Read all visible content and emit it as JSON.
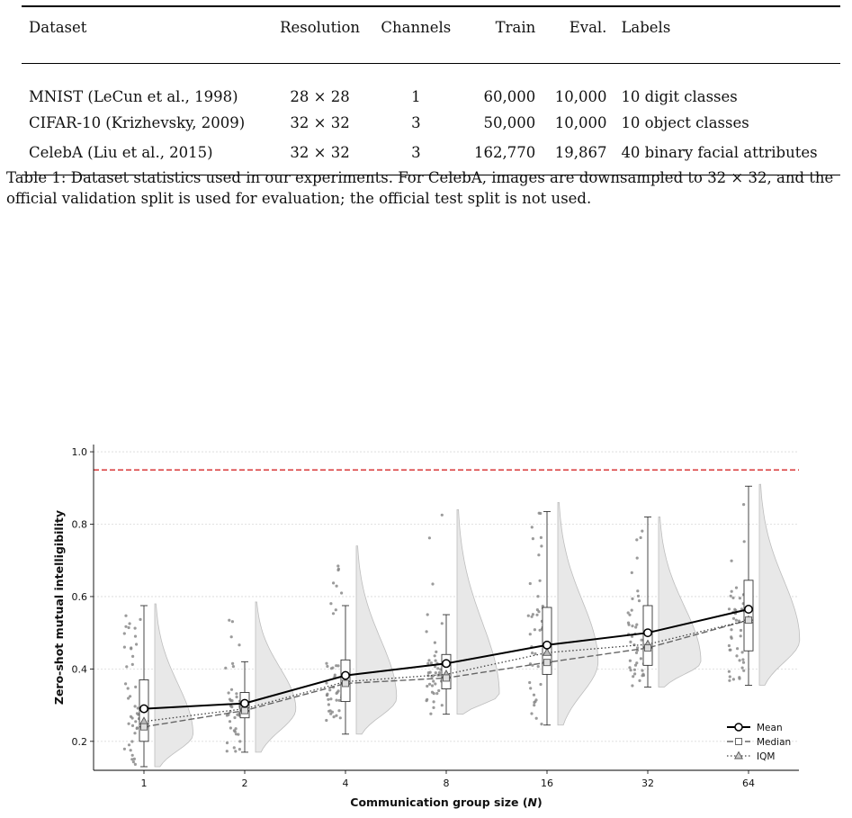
{
  "table": {
    "headers": [
      "Dataset",
      "Resolution",
      "Channels",
      "Train",
      "Eval.",
      "Labels"
    ],
    "rows": [
      [
        "MNIST (LeCun et al., 1998)",
        "28 × 28",
        "1",
        "60,000",
        "10,000",
        "10 digit classes"
      ],
      [
        "CIFAR-10 (Krizhevsky, 2009)",
        "32 × 32",
        "3",
        "50,000",
        "10,000",
        "10 object classes"
      ],
      [
        "CelebA (Liu et al., 2015)",
        "32 × 32",
        "3",
        "162,770",
        "19,867",
        "40 binary facial attributes"
      ]
    ]
  },
  "caption": {
    "label": "Table 1:",
    "text": "Dataset statistics used in our experiments. For CelebA, images are downsampled to 32 × 32, and the official validation split is used for evaluation; the official test split is not used."
  },
  "chart_data": {
    "type": "raincloud",
    "xlabel": "Communication group size (N)",
    "ylabel": "Zero-shot mutual intelligibility",
    "categories": [
      "1",
      "2",
      "4",
      "8",
      "16",
      "32",
      "64"
    ],
    "ylim": [
      0.12,
      1.02
    ],
    "yticks": [
      "0.2",
      "0.4",
      "0.6",
      "0.8",
      "1.0"
    ],
    "grid": "horizontal dotted",
    "reference_line": {
      "value": 0.95,
      "color": "#d62728",
      "style": "dashed"
    },
    "series": [
      {
        "name": "Mean",
        "values": [
          0.29,
          0.305,
          0.382,
          0.415,
          0.466,
          0.5,
          0.565
        ],
        "style": "solid",
        "marker": "circle"
      },
      {
        "name": "Median",
        "values": [
          0.24,
          0.285,
          0.36,
          0.375,
          0.418,
          0.458,
          0.535
        ],
        "style": "dashed",
        "marker": "square"
      },
      {
        "name": "IQM",
        "values": [
          0.255,
          0.29,
          0.365,
          0.385,
          0.445,
          0.468,
          0.535
        ],
        "style": "dotted",
        "marker": "triangle"
      }
    ],
    "boxes": [
      {
        "q1": 0.2,
        "median": 0.24,
        "q3": 0.37,
        "whisker_low": 0.13,
        "whisker_high": 0.575
      },
      {
        "q1": 0.265,
        "median": 0.285,
        "q3": 0.335,
        "whisker_low": 0.17,
        "whisker_high": 0.42
      },
      {
        "q1": 0.31,
        "median": 0.36,
        "q3": 0.425,
        "whisker_low": 0.22,
        "whisker_high": 0.575
      },
      {
        "q1": 0.345,
        "median": 0.375,
        "q3": 0.44,
        "whisker_low": 0.275,
        "whisker_high": 0.55
      },
      {
        "q1": 0.385,
        "median": 0.418,
        "q3": 0.57,
        "whisker_low": 0.245,
        "whisker_high": 0.835
      },
      {
        "q1": 0.41,
        "median": 0.458,
        "q3": 0.575,
        "whisker_low": 0.35,
        "whisker_high": 0.82
      },
      {
        "q1": 0.45,
        "median": 0.535,
        "q3": 0.645,
        "whisker_low": 0.355,
        "whisker_high": 0.905
      }
    ],
    "violins": [
      {
        "min": 0.13,
        "max": 0.58,
        "mode": 0.22,
        "width": 0.38
      },
      {
        "min": 0.17,
        "max": 0.585,
        "mode": 0.29,
        "width": 0.4
      },
      {
        "min": 0.22,
        "max": 0.74,
        "mode": 0.32,
        "width": 0.4
      },
      {
        "min": 0.275,
        "max": 0.84,
        "mode": 0.33,
        "width": 0.42
      },
      {
        "min": 0.245,
        "max": 0.86,
        "mode": 0.42,
        "width": 0.4
      },
      {
        "min": 0.35,
        "max": 0.82,
        "mode": 0.42,
        "width": 0.42
      },
      {
        "min": 0.355,
        "max": 0.91,
        "mode": 0.48,
        "width": 0.4
      }
    ],
    "legend": "lower-right",
    "colors": {
      "violin": "#e8e8e8",
      "points": "#8a8a8a",
      "mean": "#000000",
      "median": "#666666",
      "iqm": "#444444"
    }
  }
}
